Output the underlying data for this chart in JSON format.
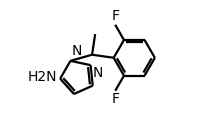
{
  "background_color": "#ffffff",
  "line_color": "#000000",
  "line_width": 1.6,
  "font_size": 10,
  "nh2_label": "H2N",
  "n1_label": "N",
  "n2_label": "N",
  "f1_label": "F",
  "f2_label": "F",
  "figsize": [
    2.09,
    1.36
  ],
  "dpi": 100
}
